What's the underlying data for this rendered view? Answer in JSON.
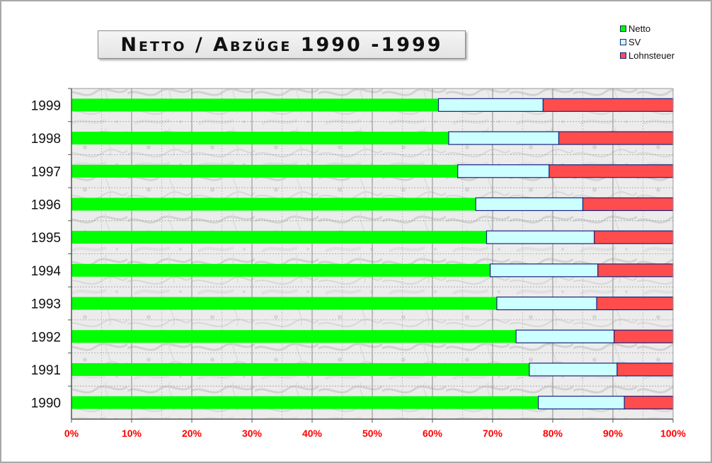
{
  "title": "Netto / Abzüge 1990 -1999",
  "legend": [
    {
      "label": "Netto",
      "color": "#00ff00"
    },
    {
      "label": "SV",
      "color": "#ccffff"
    },
    {
      "label": "Lohnsteuer",
      "color": "#ff4d4d"
    }
  ],
  "chart_data": {
    "type": "bar",
    "orientation": "horizontal",
    "stacked": true,
    "percent": true,
    "title": "Netto / Abzüge 1990 -1999",
    "categories": [
      "1999",
      "1998",
      "1997",
      "1996",
      "1995",
      "1994",
      "1993",
      "1992",
      "1991",
      "1990"
    ],
    "series": [
      {
        "name": "Netto",
        "color": "#00ff00",
        "values": [
          61,
          62.7,
          64.2,
          67.2,
          69,
          69.6,
          70.7,
          73.9,
          76.1,
          77.6
        ]
      },
      {
        "name": "SV",
        "color": "#ccffff",
        "values": [
          17.4,
          18.3,
          15.2,
          17.8,
          17.9,
          17.9,
          16.6,
          16.3,
          14.6,
          14.3
        ]
      },
      {
        "name": "Lohnsteuer",
        "color": "#ff4d4d",
        "values": [
          21.6,
          19,
          20.6,
          15,
          13.1,
          12.5,
          12.7,
          9.8,
          9.3,
          8.1
        ]
      }
    ],
    "x_ticks": [
      "0%",
      "10%",
      "20%",
      "30%",
      "40%",
      "50%",
      "60%",
      "70%",
      "80%",
      "90%",
      "100%"
    ],
    "xlim": [
      0,
      100
    ],
    "xlabel": "",
    "ylabel": "",
    "grid": true,
    "legend_position": "top-right"
  }
}
